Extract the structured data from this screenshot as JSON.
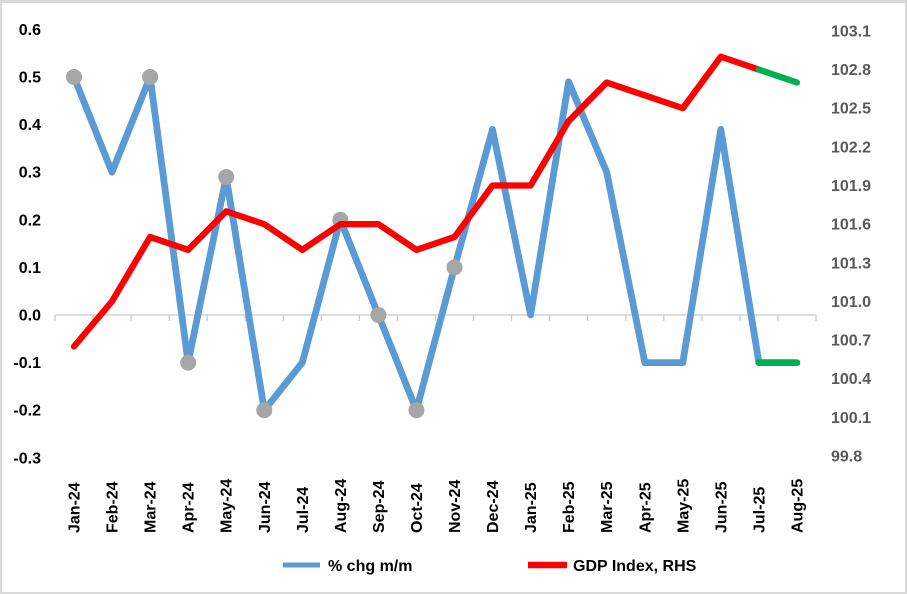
{
  "chart_data": {
    "type": "line",
    "title": "",
    "xlabel": "",
    "ylabel_left": "% chg m/m",
    "ylabel_right": "GDP Index, RHS",
    "grid": "horizontal-zero-line-only",
    "categories": [
      "Jan-24",
      "Feb-24",
      "Mar-24",
      "Apr-24",
      "May-24",
      "Jun-24",
      "Jul-24",
      "Aug-24",
      "Sep-24",
      "Oct-24",
      "Nov-24",
      "Dec-24",
      "Jan-25",
      "Feb-25",
      "Mar-25",
      "Apr-25",
      "May-25",
      "Jun-25",
      "Jul-25",
      "Aug-25"
    ],
    "series": [
      {
        "name": "% chg m/m",
        "axis": "left",
        "color": "#5B9BD5",
        "forecast_color": "#00B050",
        "forecast_start_index": 18,
        "marker_color": "#A6A6A6",
        "marker_indices": [
          0,
          2,
          3,
          4,
          5,
          7,
          8,
          9,
          10
        ],
        "values": [
          0.5,
          0.3,
          0.5,
          -0.1,
          0.29,
          -0.2,
          -0.1,
          0.2,
          0.0,
          -0.2,
          0.1,
          0.39,
          0.0,
          0.49,
          0.3,
          -0.1,
          -0.1,
          0.39,
          -0.1,
          -0.1
        ]
      },
      {
        "name": "GDP Index, RHS",
        "axis": "right",
        "color": "#FF0000",
        "forecast_color": "#00B050",
        "forecast_start_index": 18,
        "marker_indices": [],
        "values": [
          100.65,
          101.0,
          101.5,
          101.4,
          101.7,
          101.6,
          101.4,
          101.6,
          101.6,
          101.4,
          101.5,
          101.9,
          101.9,
          102.4,
          102.7,
          102.6,
          102.5,
          102.9,
          102.8,
          102.7
        ]
      }
    ],
    "left_axis": {
      "min": -0.3,
      "max": 0.6,
      "step": 0.1,
      "tick_labels": [
        "0.6",
        "0.5",
        "0.4",
        "0.3",
        "0.2",
        "0.1",
        "0.0",
        "-0.1",
        "-0.2",
        "-0.3"
      ]
    },
    "right_axis": {
      "min": 99.8,
      "max": 103.1,
      "step": 0.3,
      "tick_labels": [
        "103.1",
        "102.8",
        "102.5",
        "102.2",
        "101.9",
        "101.6",
        "101.3",
        "101.0",
        "100.7",
        "100.4",
        "100.1",
        "99.8"
      ]
    },
    "legend": {
      "position": "bottom",
      "items": [
        {
          "label": "% chg m/m",
          "color": "#5B9BD5"
        },
        {
          "label": "GDP Index, RHS",
          "color": "#FF0000"
        }
      ]
    }
  },
  "colors": {
    "background": "#FFFFFF",
    "frame_border": "#D9D9D9",
    "axis_line": "#C9C9C9",
    "left_tick_label": "#000000",
    "right_tick_label": "#595959",
    "x_tick_label": "#000000",
    "marker_gray": "#A6A6A6",
    "forecast_green": "#00B050"
  }
}
